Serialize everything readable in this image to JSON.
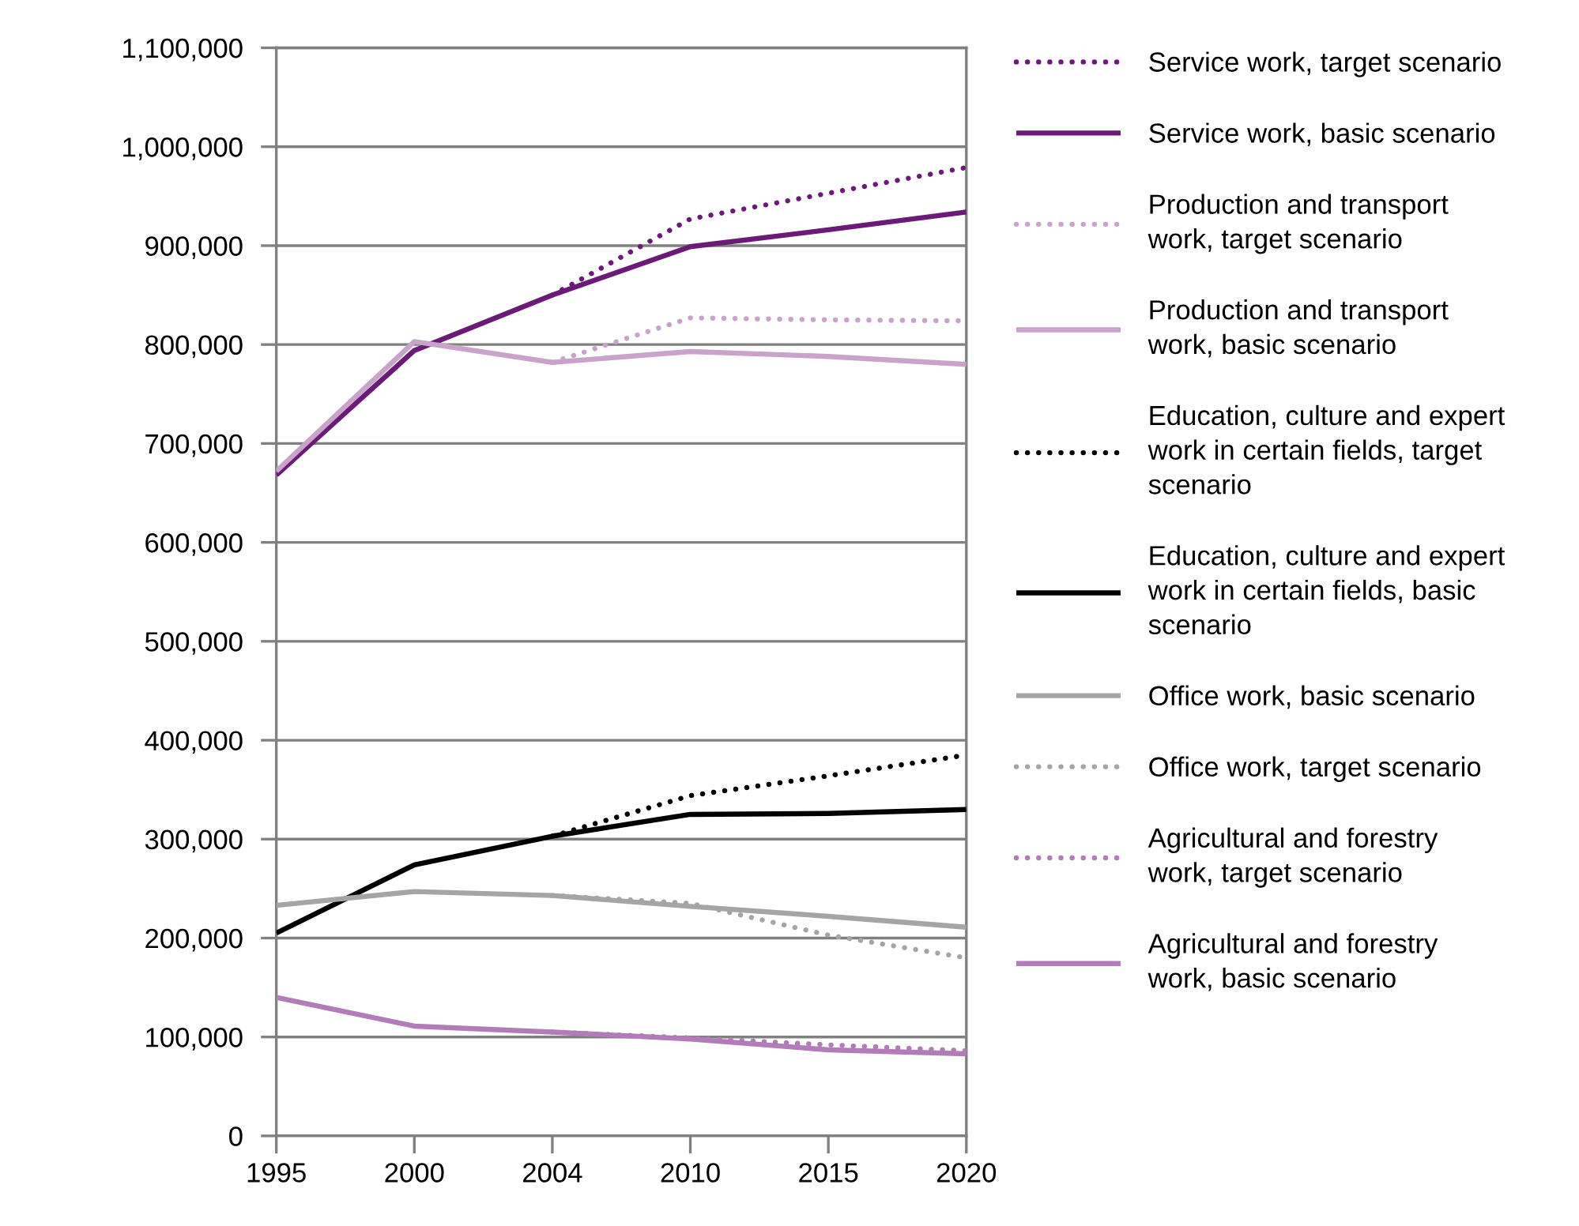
{
  "chart_data": {
    "type": "line",
    "categories": [
      "1995",
      "2000",
      "2004",
      "2010",
      "2015",
      "2020"
    ],
    "ylim": [
      0,
      1100000
    ],
    "yticks": [
      0,
      {
        "value": 100000,
        "label": "100,000"
      },
      {
        "value": 200000,
        "label": "200,000"
      },
      {
        "value": 300000,
        "label": "300,000"
      },
      {
        "value": 400000,
        "label": "400,000"
      },
      {
        "value": 500000,
        "label": "500,000"
      },
      {
        "value": 600000,
        "label": "600,000"
      },
      {
        "value": 700000,
        "label": "700,000"
      },
      {
        "value": 800000,
        "label": "800,000"
      },
      {
        "value": 900000,
        "label": "900,000"
      },
      {
        "value": 1000000,
        "label": "1,000,000"
      },
      {
        "value": 1100000,
        "label": "1,100,000"
      }
    ],
    "grid": "y",
    "legend": "right",
    "series": [
      {
        "name": "Service work, target scenario",
        "color": "#6b1a78",
        "line_style": "dotted",
        "values": [
          null,
          null,
          850000,
          927000,
          953000,
          979000
        ]
      },
      {
        "name": "Service work, basic scenario",
        "color": "#6b1a78",
        "line_style": "solid",
        "values": [
          668000,
          794000,
          850000,
          899000,
          916000,
          934000
        ]
      },
      {
        "name": "Production and transport work, target scenario",
        "color": "#c9a3ca",
        "line_style": "dotted",
        "values": [
          null,
          null,
          782000,
          827000,
          825000,
          824000
        ]
      },
      {
        "name": "Production and transport work, basic scenario",
        "color": "#c9a3ca",
        "line_style": "solid",
        "values": [
          672000,
          803000,
          782000,
          793000,
          788000,
          780000
        ]
      },
      {
        "name": "Education, culture and expert work in certain fields, target scenario",
        "color": "#000000",
        "line_style": "dotted",
        "values": [
          null,
          null,
          303000,
          344000,
          364000,
          385000
        ]
      },
      {
        "name": "Education, culture and expert work in certain fields, basic scenario",
        "color": "#000000",
        "line_style": "solid",
        "values": [
          205000,
          274000,
          303000,
          325000,
          326000,
          330000
        ]
      },
      {
        "name": "Office work, basic scenario",
        "color": "#a5a5a5",
        "line_style": "solid",
        "values": [
          233000,
          247000,
          243000,
          232000,
          222000,
          211000
        ]
      },
      {
        "name": "Office work, target scenario",
        "color": "#a5a5a5",
        "line_style": "dotted",
        "values": [
          null,
          null,
          243000,
          235000,
          203000,
          180000
        ]
      },
      {
        "name": "Agricultural and forestry work, target scenario",
        "color": "#b27cb8",
        "line_style": "dotted",
        "values": [
          null,
          null,
          105000,
          99000,
          92000,
          86000
        ]
      },
      {
        "name": "Agricultural and forestry work, basic scenario",
        "color": "#b27cb8",
        "line_style": "solid",
        "values": [
          140000,
          111000,
          105000,
          98000,
          87000,
          83000
        ]
      }
    ]
  }
}
